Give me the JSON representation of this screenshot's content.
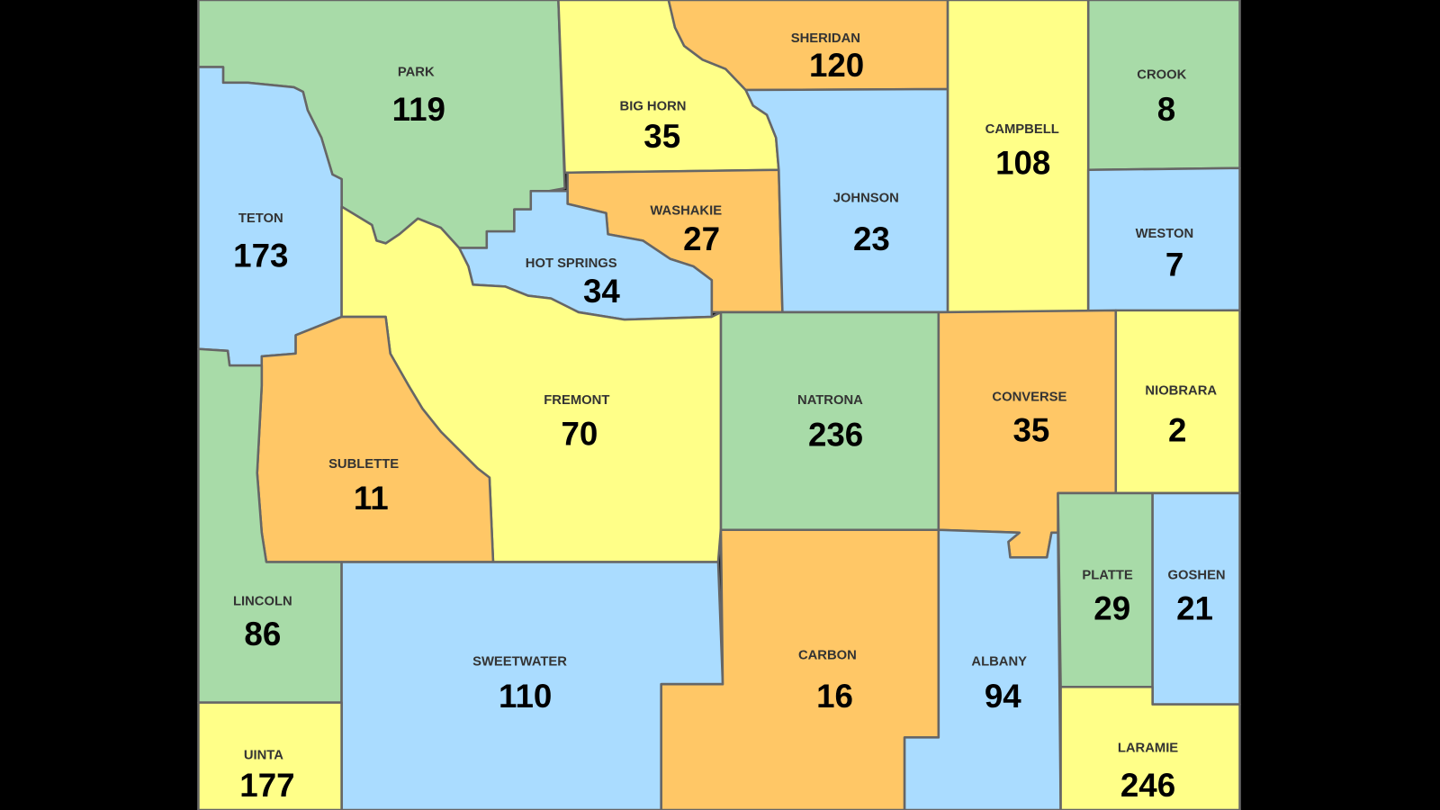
{
  "colors": {
    "green": "#a8dba8",
    "yellow": "#ffff88",
    "orange": "#ffc766",
    "blue": "#aadcff",
    "border": "#666666",
    "background": "#000000"
  },
  "counties": [
    {
      "name": "PARK",
      "value": "119",
      "color": "green"
    },
    {
      "name": "BIG HORN",
      "value": "35",
      "color": "yellow"
    },
    {
      "name": "SHERIDAN",
      "value": "120",
      "color": "orange"
    },
    {
      "name": "CROOK",
      "value": "8",
      "color": "green"
    },
    {
      "name": "TETON",
      "value": "173",
      "color": "blue"
    },
    {
      "name": "WASHAKIE",
      "value": "27",
      "color": "orange"
    },
    {
      "name": "JOHNSON",
      "value": "23",
      "color": "blue"
    },
    {
      "name": "CAMPBELL",
      "value": "108",
      "color": "yellow"
    },
    {
      "name": "WESTON",
      "value": "7",
      "color": "blue"
    },
    {
      "name": "HOT SPRINGS",
      "value": "34",
      "color": "blue"
    },
    {
      "name": "FREMONT",
      "value": "70",
      "color": "yellow"
    },
    {
      "name": "NATRONA",
      "value": "236",
      "color": "green"
    },
    {
      "name": "CONVERSE",
      "value": "35",
      "color": "orange"
    },
    {
      "name": "NIOBRARA",
      "value": "2",
      "color": "yellow"
    },
    {
      "name": "SUBLETTE",
      "value": "11",
      "color": "orange"
    },
    {
      "name": "LINCOLN",
      "value": "86",
      "color": "green"
    },
    {
      "name": "SWEETWATER",
      "value": "110",
      "color": "blue"
    },
    {
      "name": "CARBON",
      "value": "16",
      "color": "orange"
    },
    {
      "name": "ALBANY",
      "value": "94",
      "color": "blue"
    },
    {
      "name": "PLATTE",
      "value": "29",
      "color": "green"
    },
    {
      "name": "GOSHEN",
      "value": "21",
      "color": "blue"
    },
    {
      "name": "UINTA",
      "value": "177",
      "color": "yellow"
    },
    {
      "name": "LARAMIE",
      "value": "246",
      "color": "yellow"
    }
  ]
}
